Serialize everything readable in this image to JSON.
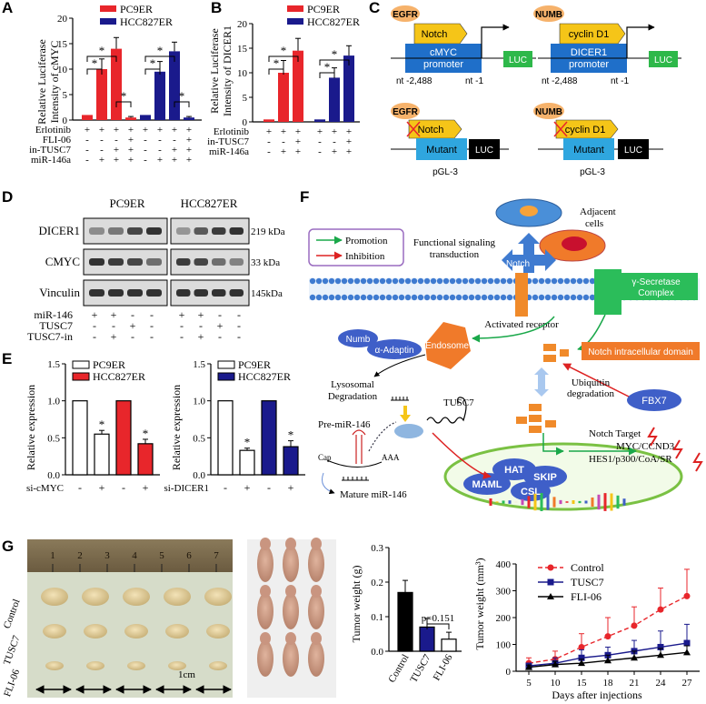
{
  "panels": {
    "A": {
      "letter": "A",
      "ylabel": [
        "Relative Luciferase",
        "Intensity of cMYC"
      ],
      "legend": [
        "PC9ER",
        "HCC827ER"
      ],
      "yticks": [
        "0",
        "5",
        "10",
        "15",
        "20"
      ],
      "row_labels": [
        "Erlotinib",
        "FLI-06",
        "in-TUSC7",
        "miR-146a"
      ],
      "rows": [
        [
          "+",
          "+",
          "+",
          "+",
          "+",
          "+",
          "+",
          "+"
        ],
        [
          "-",
          "-",
          "-",
          "+",
          "-",
          "-",
          "-",
          "+"
        ],
        [
          "-",
          "-",
          "+",
          "+",
          "-",
          "-",
          "+",
          "+"
        ],
        [
          "-",
          "+",
          "+",
          "+",
          "-",
          "+",
          "+",
          "+"
        ]
      ],
      "sig": [
        "*",
        "*",
        "*",
        "*",
        "*",
        "*"
      ]
    },
    "B": {
      "letter": "B",
      "ylabel": [
        "Relative Luciferase",
        "Intensity of DICER1"
      ],
      "legend": [
        "PC9ER",
        "HCC827ER"
      ],
      "yticks": [
        "0",
        "5",
        "10",
        "15",
        "20"
      ],
      "row_labels": [
        "Erlotinib",
        "in-TUSC7",
        "miR-146a"
      ],
      "rows": [
        [
          "+",
          "+",
          "+",
          "+",
          "+",
          "+"
        ],
        [
          "-",
          "-",
          "+",
          "-",
          "-",
          "+"
        ],
        [
          "-",
          "+",
          "+",
          "-",
          "+",
          "+"
        ]
      ],
      "sig": [
        "*",
        "*",
        "*",
        "*"
      ]
    },
    "C": {
      "letter": "C",
      "egfr": "EGFR",
      "numb": "NUMB",
      "notch": "Notch",
      "cyclin": "cyclin D1",
      "cmyc_prom": [
        "cMYC",
        "promoter"
      ],
      "dicer_prom": [
        "DICER1",
        "promoter"
      ],
      "luc": "LUC",
      "nt_start": "nt -2,488",
      "nt_end": "nt -1",
      "mutant": "Mutant",
      "pgl3": "pGL-3"
    },
    "D": {
      "letter": "D",
      "cell_lines": [
        "PC9ER",
        "HCC827ER"
      ],
      "proteins": [
        "DICER1",
        "CMYC",
        "Vinculin"
      ],
      "kda": [
        "219 kDa",
        "33 kDa",
        "145kDa"
      ],
      "row_labels": [
        "miR-146",
        "TUSC7",
        "TUSC7-in"
      ],
      "rows": [
        [
          "+",
          "+",
          "-",
          "-",
          "+",
          "+",
          "-",
          "-"
        ],
        [
          "-",
          "-",
          "+",
          "-",
          "-",
          "-",
          "+",
          "-"
        ],
        [
          "-",
          "+",
          "-",
          "-",
          "-",
          "+",
          "-",
          "-"
        ]
      ]
    },
    "E": {
      "letter": "E",
      "ylabel": "Relative expression",
      "yticks": [
        "0.0",
        "0.5",
        "1.0",
        "1.5"
      ],
      "left_legend": [
        "PC9ER",
        "HCC827ER"
      ],
      "right_legend": [
        "PC9ER",
        "HCC827ER"
      ],
      "left_row": "si-cMYC",
      "right_row": "si-DICER1",
      "signs": [
        "-",
        "+",
        "-",
        "+"
      ],
      "sig": "*"
    },
    "F": {
      "letter": "F",
      "legend_promotion": "Promotion",
      "legend_inhibition": "Inhibition",
      "adjacent": [
        "Adjacent",
        "cells"
      ],
      "func": [
        "Functional signaling",
        "transduction"
      ],
      "notch": "Notch",
      "gamma": [
        "γ-Secretase",
        "Complex"
      ],
      "activated": "Activated receptor",
      "numb": "Numb",
      "adaptin": "α-Adaptin",
      "endosome": "Endosome",
      "nicd": "Notch intracellular domain",
      "lyso": [
        "Lysosomal",
        "Degradation"
      ],
      "ubiq": [
        "Ubiquitin",
        "degradation"
      ],
      "fbx7": "FBX7",
      "tusc7": "TUSC7",
      "premir": "Pre-miR-146",
      "cap": "Cap",
      "aaa": "AAA",
      "mature": "Mature miR-146",
      "target": [
        "Notch Target",
        "MYC/CCND3",
        "HES1/p300/CoA/SR"
      ],
      "complex": [
        "HAT",
        "SKIP",
        "MAML",
        "CSL"
      ]
    },
    "G": {
      "letter": "G",
      "ruler": [
        "1",
        "2",
        "3",
        "4",
        "5",
        "6",
        "7"
      ],
      "groups": [
        "Control",
        "TUSC7",
        "FLI-06"
      ],
      "scale": "1cm",
      "weight_ylabel": "Tumor weight (g)",
      "weight_yticks": [
        "0.0",
        "0.1",
        "0.2",
        "0.3"
      ],
      "pvalue": "p=0.151",
      "vol_ylabel": "Tumor weight (mm³)",
      "vol_xlabel": "Days after injections",
      "vol_yticks": [
        "0",
        "100",
        "200",
        "300",
        "400"
      ],
      "vol_xticks": [
        "5",
        "10",
        "15",
        "18",
        "21",
        "24",
        "27"
      ]
    }
  },
  "chart_data": [
    {
      "type": "bar",
      "panel": "A",
      "ylabel": "Relative Luciferase Intensity of cMYC",
      "ylim": [
        0,
        20
      ],
      "series": [
        {
          "name": "PC9ER",
          "values": [
            1,
            10,
            14,
            0.5
          ],
          "errors": [
            0,
            2,
            2.2,
            0.2
          ]
        },
        {
          "name": "HCC827ER",
          "values": [
            1,
            9.5,
            13.5,
            0.5
          ],
          "errors": [
            0,
            2,
            1.8,
            0.2
          ]
        }
      ]
    },
    {
      "type": "bar",
      "panel": "B",
      "ylabel": "Relative Luciferase Intensity of DICER1",
      "ylim": [
        0,
        20
      ],
      "series": [
        {
          "name": "PC9ER",
          "values": [
            0.5,
            10,
            14.5
          ],
          "errors": [
            0,
            2.5,
            2.5
          ]
        },
        {
          "name": "HCC827ER",
          "values": [
            0.5,
            9,
            13.5
          ],
          "errors": [
            0,
            2,
            2
          ]
        }
      ]
    },
    {
      "type": "bar",
      "panel": "E-left",
      "ylabel": "Relative expression",
      "ylim": [
        0,
        1.5
      ],
      "categories": [
        "-",
        "+",
        "-",
        "+"
      ],
      "values": [
        1.0,
        0.55,
        1.0,
        0.42
      ],
      "errors": [
        0,
        0.05,
        0,
        0.06
      ],
      "series_of": [
        "PC9ER",
        "PC9ER",
        "HCC827ER",
        "HCC827ER"
      ]
    },
    {
      "type": "bar",
      "panel": "E-right",
      "ylabel": "Relative expression",
      "ylim": [
        0,
        1.5
      ],
      "categories": [
        "-",
        "+",
        "-",
        "+"
      ],
      "values": [
        1.0,
        0.33,
        1.0,
        0.38
      ],
      "errors": [
        0,
        0.03,
        0,
        0.08
      ],
      "series_of": [
        "PC9ER",
        "PC9ER",
        "HCC827ER",
        "HCC827ER"
      ]
    },
    {
      "type": "bar",
      "panel": "G-weight",
      "ylabel": "Tumor weight (g)",
      "ylim": [
        0,
        0.3
      ],
      "categories": [
        "Control",
        "TUSC7",
        "FLI-06"
      ],
      "values": [
        0.17,
        0.07,
        0.035
      ],
      "errors": [
        0.035,
        0.025,
        0.02
      ],
      "colors": [
        "#000000",
        "#1a1a8c",
        "#ffffff"
      ]
    },
    {
      "type": "line",
      "panel": "G-volume",
      "xlabel": "Days after injections",
      "ylabel": "Tumor weight (mm³)",
      "ylim": [
        0,
        400
      ],
      "x": [
        5,
        10,
        15,
        18,
        21,
        24,
        27
      ],
      "series": [
        {
          "name": "Control",
          "values": [
            30,
            45,
            90,
            130,
            170,
            230,
            280
          ],
          "errors": [
            20,
            30,
            50,
            70,
            70,
            80,
            100
          ],
          "color": "#e8262b"
        },
        {
          "name": "TUSC7",
          "values": [
            20,
            30,
            50,
            60,
            75,
            90,
            105
          ],
          "errors": [
            10,
            20,
            30,
            30,
            40,
            60,
            70
          ],
          "color": "#1a1a8c"
        },
        {
          "name": "FLI-06",
          "values": [
            15,
            25,
            30,
            40,
            50,
            60,
            70
          ],
          "errors": [
            8,
            12,
            15,
            20,
            25,
            25,
            25
          ],
          "color": "#000000"
        }
      ]
    }
  ]
}
